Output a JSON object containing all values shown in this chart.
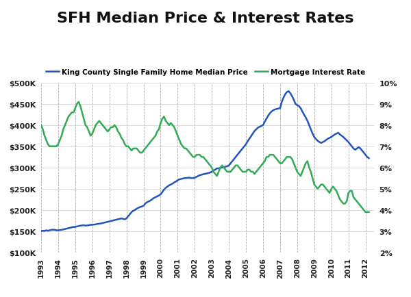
{
  "title": "SFH Median Price & Interest Rates",
  "title_fontsize": 16,
  "legend_label_price": "King County Single Family Home Median Price",
  "legend_label_rate": "Mortgage Interest Rate",
  "line_color_price": "#2255BB",
  "line_color_rate": "#33AA55",
  "background_color": "#FFFFFF",
  "grid_color_v": "#AAAAAA",
  "grid_color_h": "#CCCCCC",
  "price_ylim": [
    100000,
    500000
  ],
  "rate_ylim": [
    2,
    10
  ],
  "price_yticks": [
    100000,
    150000,
    200000,
    250000,
    300000,
    350000,
    400000,
    450000,
    500000
  ],
  "rate_yticks": [
    2,
    3,
    4,
    5,
    6,
    7,
    8,
    9,
    10
  ],
  "price_ytick_labels": [
    "$100K",
    "$150K",
    "$200K",
    "$250K",
    "$300K",
    "$350K",
    "$400K",
    "$450K",
    "$500K"
  ],
  "rate_ytick_labels": [
    "2%",
    "3%",
    "4%",
    "5%",
    "6%",
    "7%",
    "8%",
    "9%",
    "10%"
  ],
  "price_data": [
    [
      1993.0,
      150000
    ],
    [
      1993.1,
      151000
    ],
    [
      1993.2,
      150500
    ],
    [
      1993.3,
      152000
    ],
    [
      1993.4,
      151000
    ],
    [
      1993.5,
      152000
    ],
    [
      1993.6,
      153000
    ],
    [
      1993.7,
      153500
    ],
    [
      1993.8,
      153000
    ],
    [
      1993.9,
      152000
    ],
    [
      1994.0,
      152000
    ],
    [
      1994.1,
      152500
    ],
    [
      1994.2,
      153000
    ],
    [
      1994.3,
      154000
    ],
    [
      1994.4,
      155000
    ],
    [
      1994.5,
      156000
    ],
    [
      1994.6,
      157000
    ],
    [
      1994.7,
      158000
    ],
    [
      1994.8,
      159000
    ],
    [
      1994.9,
      160000
    ],
    [
      1995.0,
      160000
    ],
    [
      1995.1,
      161000
    ],
    [
      1995.2,
      162000
    ],
    [
      1995.3,
      163000
    ],
    [
      1995.4,
      163500
    ],
    [
      1995.5,
      164000
    ],
    [
      1995.6,
      163000
    ],
    [
      1995.7,
      163500
    ],
    [
      1995.8,
      164000
    ],
    [
      1995.9,
      165000
    ],
    [
      1996.0,
      165000
    ],
    [
      1996.1,
      165500
    ],
    [
      1996.2,
      166000
    ],
    [
      1996.3,
      167000
    ],
    [
      1996.4,
      167500
    ],
    [
      1996.5,
      168000
    ],
    [
      1996.6,
      169000
    ],
    [
      1996.7,
      170000
    ],
    [
      1996.8,
      171000
    ],
    [
      1996.9,
      172000
    ],
    [
      1997.0,
      173000
    ],
    [
      1997.1,
      174000
    ],
    [
      1997.2,
      175000
    ],
    [
      1997.3,
      176000
    ],
    [
      1997.4,
      177000
    ],
    [
      1997.5,
      178000
    ],
    [
      1997.6,
      179000
    ],
    [
      1997.7,
      180000
    ],
    [
      1997.8,
      179000
    ],
    [
      1997.9,
      178000
    ],
    [
      1998.0,
      180000
    ],
    [
      1998.1,
      185000
    ],
    [
      1998.2,
      190000
    ],
    [
      1998.3,
      195000
    ],
    [
      1998.4,
      198000
    ],
    [
      1998.5,
      200000
    ],
    [
      1998.6,
      203000
    ],
    [
      1998.7,
      205000
    ],
    [
      1998.8,
      207000
    ],
    [
      1998.9,
      208000
    ],
    [
      1999.0,
      210000
    ],
    [
      1999.1,
      215000
    ],
    [
      1999.2,
      218000
    ],
    [
      1999.3,
      220000
    ],
    [
      1999.4,
      222000
    ],
    [
      1999.5,
      225000
    ],
    [
      1999.6,
      228000
    ],
    [
      1999.7,
      230000
    ],
    [
      1999.8,
      232000
    ],
    [
      1999.9,
      234000
    ],
    [
      2000.0,
      237000
    ],
    [
      2000.1,
      242000
    ],
    [
      2000.2,
      248000
    ],
    [
      2000.3,
      252000
    ],
    [
      2000.4,
      255000
    ],
    [
      2000.5,
      258000
    ],
    [
      2000.6,
      260000
    ],
    [
      2000.7,
      262000
    ],
    [
      2000.8,
      265000
    ],
    [
      2000.9,
      267000
    ],
    [
      2001.0,
      270000
    ],
    [
      2001.1,
      272000
    ],
    [
      2001.2,
      273000
    ],
    [
      2001.3,
      274000
    ],
    [
      2001.4,
      275000
    ],
    [
      2001.5,
      275000
    ],
    [
      2001.6,
      276000
    ],
    [
      2001.7,
      276000
    ],
    [
      2001.8,
      275000
    ],
    [
      2001.9,
      275000
    ],
    [
      2002.0,
      276000
    ],
    [
      2002.1,
      278000
    ],
    [
      2002.2,
      280000
    ],
    [
      2002.3,
      282000
    ],
    [
      2002.4,
      283000
    ],
    [
      2002.5,
      284000
    ],
    [
      2002.6,
      285000
    ],
    [
      2002.7,
      286000
    ],
    [
      2002.8,
      287000
    ],
    [
      2002.9,
      288000
    ],
    [
      2003.0,
      290000
    ],
    [
      2003.1,
      293000
    ],
    [
      2003.2,
      295000
    ],
    [
      2003.3,
      298000
    ],
    [
      2003.4,
      298000
    ],
    [
      2003.5,
      299000
    ],
    [
      2003.6,
      300000
    ],
    [
      2003.7,
      301000
    ],
    [
      2003.8,
      302000
    ],
    [
      2003.9,
      303000
    ],
    [
      2004.0,
      305000
    ],
    [
      2004.1,
      310000
    ],
    [
      2004.2,
      315000
    ],
    [
      2004.3,
      320000
    ],
    [
      2004.4,
      325000
    ],
    [
      2004.5,
      330000
    ],
    [
      2004.6,
      335000
    ],
    [
      2004.7,
      340000
    ],
    [
      2004.8,
      345000
    ],
    [
      2004.9,
      350000
    ],
    [
      2005.0,
      355000
    ],
    [
      2005.1,
      362000
    ],
    [
      2005.2,
      368000
    ],
    [
      2005.3,
      374000
    ],
    [
      2005.4,
      380000
    ],
    [
      2005.5,
      386000
    ],
    [
      2005.6,
      390000
    ],
    [
      2005.7,
      394000
    ],
    [
      2005.8,
      396000
    ],
    [
      2005.9,
      398000
    ],
    [
      2006.0,
      400000
    ],
    [
      2006.1,
      408000
    ],
    [
      2006.2,
      415000
    ],
    [
      2006.3,
      422000
    ],
    [
      2006.4,
      428000
    ],
    [
      2006.5,
      432000
    ],
    [
      2006.6,
      435000
    ],
    [
      2006.7,
      437000
    ],
    [
      2006.8,
      438000
    ],
    [
      2006.9,
      439000
    ],
    [
      2007.0,
      440000
    ],
    [
      2007.1,
      455000
    ],
    [
      2007.2,
      465000
    ],
    [
      2007.3,
      473000
    ],
    [
      2007.4,
      478000
    ],
    [
      2007.5,
      480000
    ],
    [
      2007.6,
      475000
    ],
    [
      2007.7,
      468000
    ],
    [
      2007.8,
      460000
    ],
    [
      2007.9,
      450000
    ],
    [
      2008.0,
      447000
    ],
    [
      2008.1,
      445000
    ],
    [
      2008.2,
      440000
    ],
    [
      2008.3,
      432000
    ],
    [
      2008.4,
      425000
    ],
    [
      2008.5,
      418000
    ],
    [
      2008.6,
      410000
    ],
    [
      2008.7,
      400000
    ],
    [
      2008.8,
      390000
    ],
    [
      2008.9,
      380000
    ],
    [
      2009.0,
      372000
    ],
    [
      2009.1,
      367000
    ],
    [
      2009.2,
      363000
    ],
    [
      2009.3,
      360000
    ],
    [
      2009.4,
      358000
    ],
    [
      2009.5,
      360000
    ],
    [
      2009.6,
      362000
    ],
    [
      2009.7,
      365000
    ],
    [
      2009.8,
      368000
    ],
    [
      2009.9,
      370000
    ],
    [
      2010.0,
      372000
    ],
    [
      2010.1,
      375000
    ],
    [
      2010.2,
      378000
    ],
    [
      2010.3,
      380000
    ],
    [
      2010.4,
      382000
    ],
    [
      2010.5,
      378000
    ],
    [
      2010.6,
      375000
    ],
    [
      2010.7,
      372000
    ],
    [
      2010.8,
      368000
    ],
    [
      2010.9,
      364000
    ],
    [
      2011.0,
      360000
    ],
    [
      2011.1,
      355000
    ],
    [
      2011.2,
      350000
    ],
    [
      2011.3,
      345000
    ],
    [
      2011.4,
      342000
    ],
    [
      2011.5,
      345000
    ],
    [
      2011.6,
      348000
    ],
    [
      2011.7,
      345000
    ],
    [
      2011.8,
      340000
    ],
    [
      2011.9,
      335000
    ],
    [
      2012.0,
      330000
    ],
    [
      2012.1,
      325000
    ],
    [
      2012.2,
      322000
    ]
  ],
  "rate_data": [
    [
      1993.0,
      8.0
    ],
    [
      1993.1,
      7.8
    ],
    [
      1993.2,
      7.5
    ],
    [
      1993.3,
      7.3
    ],
    [
      1993.4,
      7.1
    ],
    [
      1993.5,
      7.0
    ],
    [
      1993.6,
      7.0
    ],
    [
      1993.7,
      7.0
    ],
    [
      1993.8,
      7.0
    ],
    [
      1993.9,
      7.0
    ],
    [
      1994.0,
      7.1
    ],
    [
      1994.1,
      7.3
    ],
    [
      1994.2,
      7.5
    ],
    [
      1994.3,
      7.8
    ],
    [
      1994.4,
      8.0
    ],
    [
      1994.5,
      8.2
    ],
    [
      1994.6,
      8.4
    ],
    [
      1994.7,
      8.5
    ],
    [
      1994.8,
      8.6
    ],
    [
      1994.9,
      8.6
    ],
    [
      1995.0,
      8.8
    ],
    [
      1995.1,
      9.0
    ],
    [
      1995.2,
      9.1
    ],
    [
      1995.3,
      8.9
    ],
    [
      1995.4,
      8.6
    ],
    [
      1995.5,
      8.3
    ],
    [
      1995.6,
      8.0
    ],
    [
      1995.7,
      7.9
    ],
    [
      1995.8,
      7.7
    ],
    [
      1995.9,
      7.5
    ],
    [
      1996.0,
      7.6
    ],
    [
      1996.1,
      7.8
    ],
    [
      1996.2,
      8.0
    ],
    [
      1996.3,
      8.1
    ],
    [
      1996.4,
      8.2
    ],
    [
      1996.5,
      8.1
    ],
    [
      1996.6,
      8.0
    ],
    [
      1996.7,
      7.9
    ],
    [
      1996.8,
      7.8
    ],
    [
      1996.9,
      7.7
    ],
    [
      1997.0,
      7.8
    ],
    [
      1997.1,
      7.9
    ],
    [
      1997.2,
      7.9
    ],
    [
      1997.3,
      8.0
    ],
    [
      1997.4,
      7.9
    ],
    [
      1997.5,
      7.7
    ],
    [
      1997.6,
      7.6
    ],
    [
      1997.7,
      7.4
    ],
    [
      1997.8,
      7.3
    ],
    [
      1997.9,
      7.1
    ],
    [
      1998.0,
      7.0
    ],
    [
      1998.1,
      7.0
    ],
    [
      1998.2,
      6.9
    ],
    [
      1998.3,
      6.8
    ],
    [
      1998.4,
      6.9
    ],
    [
      1998.5,
      6.9
    ],
    [
      1998.6,
      6.9
    ],
    [
      1998.7,
      6.8
    ],
    [
      1998.8,
      6.7
    ],
    [
      1998.9,
      6.7
    ],
    [
      1999.0,
      6.8
    ],
    [
      1999.1,
      6.9
    ],
    [
      1999.2,
      7.0
    ],
    [
      1999.3,
      7.1
    ],
    [
      1999.4,
      7.2
    ],
    [
      1999.5,
      7.3
    ],
    [
      1999.6,
      7.4
    ],
    [
      1999.7,
      7.5
    ],
    [
      1999.8,
      7.7
    ],
    [
      1999.9,
      7.8
    ],
    [
      2000.0,
      8.1
    ],
    [
      2000.1,
      8.3
    ],
    [
      2000.2,
      8.4
    ],
    [
      2000.3,
      8.2
    ],
    [
      2000.4,
      8.1
    ],
    [
      2000.5,
      8.0
    ],
    [
      2000.6,
      8.1
    ],
    [
      2000.7,
      8.0
    ],
    [
      2000.8,
      7.9
    ],
    [
      2000.9,
      7.7
    ],
    [
      2001.0,
      7.5
    ],
    [
      2001.1,
      7.3
    ],
    [
      2001.2,
      7.1
    ],
    [
      2001.3,
      7.0
    ],
    [
      2001.4,
      6.9
    ],
    [
      2001.5,
      6.9
    ],
    [
      2001.6,
      6.8
    ],
    [
      2001.7,
      6.7
    ],
    [
      2001.8,
      6.6
    ],
    [
      2001.9,
      6.5
    ],
    [
      2002.0,
      6.5
    ],
    [
      2002.1,
      6.6
    ],
    [
      2002.2,
      6.6
    ],
    [
      2002.3,
      6.6
    ],
    [
      2002.4,
      6.5
    ],
    [
      2002.5,
      6.5
    ],
    [
      2002.6,
      6.4
    ],
    [
      2002.7,
      6.3
    ],
    [
      2002.8,
      6.2
    ],
    [
      2002.9,
      6.1
    ],
    [
      2003.0,
      6.0
    ],
    [
      2003.1,
      5.8
    ],
    [
      2003.2,
      5.7
    ],
    [
      2003.3,
      5.6
    ],
    [
      2003.4,
      5.8
    ],
    [
      2003.5,
      6.0
    ],
    [
      2003.6,
      6.1
    ],
    [
      2003.7,
      6.0
    ],
    [
      2003.8,
      5.9
    ],
    [
      2003.9,
      5.8
    ],
    [
      2004.0,
      5.8
    ],
    [
      2004.1,
      5.8
    ],
    [
      2004.2,
      5.9
    ],
    [
      2004.3,
      6.0
    ],
    [
      2004.4,
      6.1
    ],
    [
      2004.5,
      6.1
    ],
    [
      2004.6,
      6.0
    ],
    [
      2004.7,
      5.9
    ],
    [
      2004.8,
      5.8
    ],
    [
      2004.9,
      5.8
    ],
    [
      2005.0,
      5.8
    ],
    [
      2005.1,
      5.9
    ],
    [
      2005.2,
      5.9
    ],
    [
      2005.3,
      5.8
    ],
    [
      2005.4,
      5.8
    ],
    [
      2005.5,
      5.7
    ],
    [
      2005.6,
      5.8
    ],
    [
      2005.7,
      5.9
    ],
    [
      2005.8,
      6.0
    ],
    [
      2005.9,
      6.1
    ],
    [
      2006.0,
      6.2
    ],
    [
      2006.1,
      6.3
    ],
    [
      2006.2,
      6.5
    ],
    [
      2006.3,
      6.5
    ],
    [
      2006.4,
      6.6
    ],
    [
      2006.5,
      6.6
    ],
    [
      2006.6,
      6.6
    ],
    [
      2006.7,
      6.5
    ],
    [
      2006.8,
      6.4
    ],
    [
      2006.9,
      6.3
    ],
    [
      2007.0,
      6.2
    ],
    [
      2007.1,
      6.2
    ],
    [
      2007.2,
      6.3
    ],
    [
      2007.3,
      6.4
    ],
    [
      2007.4,
      6.5
    ],
    [
      2007.5,
      6.5
    ],
    [
      2007.6,
      6.5
    ],
    [
      2007.7,
      6.4
    ],
    [
      2007.8,
      6.2
    ],
    [
      2007.9,
      6.0
    ],
    [
      2008.0,
      5.8
    ],
    [
      2008.1,
      5.7
    ],
    [
      2008.2,
      5.6
    ],
    [
      2008.3,
      5.8
    ],
    [
      2008.4,
      6.0
    ],
    [
      2008.5,
      6.2
    ],
    [
      2008.6,
      6.3
    ],
    [
      2008.7,
      6.0
    ],
    [
      2008.8,
      5.8
    ],
    [
      2008.9,
      5.5
    ],
    [
      2009.0,
      5.2
    ],
    [
      2009.1,
      5.1
    ],
    [
      2009.2,
      5.0
    ],
    [
      2009.3,
      5.1
    ],
    [
      2009.4,
      5.2
    ],
    [
      2009.5,
      5.2
    ],
    [
      2009.6,
      5.1
    ],
    [
      2009.7,
      5.0
    ],
    [
      2009.8,
      4.9
    ],
    [
      2009.9,
      4.8
    ],
    [
      2010.0,
      5.0
    ],
    [
      2010.1,
      5.1
    ],
    [
      2010.2,
      5.0
    ],
    [
      2010.3,
      4.9
    ],
    [
      2010.4,
      4.7
    ],
    [
      2010.5,
      4.5
    ],
    [
      2010.6,
      4.4
    ],
    [
      2010.7,
      4.3
    ],
    [
      2010.8,
      4.3
    ],
    [
      2010.9,
      4.4
    ],
    [
      2011.0,
      4.8
    ],
    [
      2011.1,
      4.9
    ],
    [
      2011.2,
      4.9
    ],
    [
      2011.3,
      4.6
    ],
    [
      2011.4,
      4.5
    ],
    [
      2011.5,
      4.4
    ],
    [
      2011.6,
      4.3
    ],
    [
      2011.7,
      4.2
    ],
    [
      2011.8,
      4.1
    ],
    [
      2011.9,
      4.0
    ],
    [
      2012.0,
      3.9
    ],
    [
      2012.1,
      3.9
    ],
    [
      2012.2,
      3.9
    ]
  ]
}
